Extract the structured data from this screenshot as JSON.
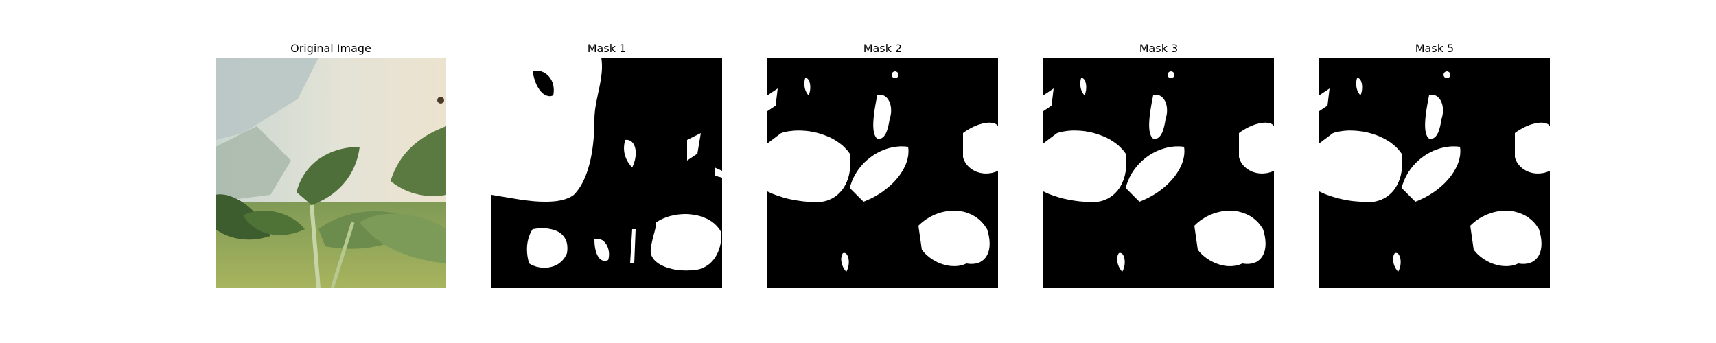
{
  "figure": {
    "panels": [
      {
        "title": "Original Image",
        "kind": "photo"
      },
      {
        "title": "Mask 1",
        "kind": "mask"
      },
      {
        "title": "Mask 2",
        "kind": "mask"
      },
      {
        "title": "Mask 3",
        "kind": "mask"
      },
      {
        "title": "Mask 5",
        "kind": "mask"
      }
    ]
  },
  "colors": {
    "background": "#ffffff",
    "mask_background": "#000000",
    "mask_foreground": "#ffffff"
  }
}
